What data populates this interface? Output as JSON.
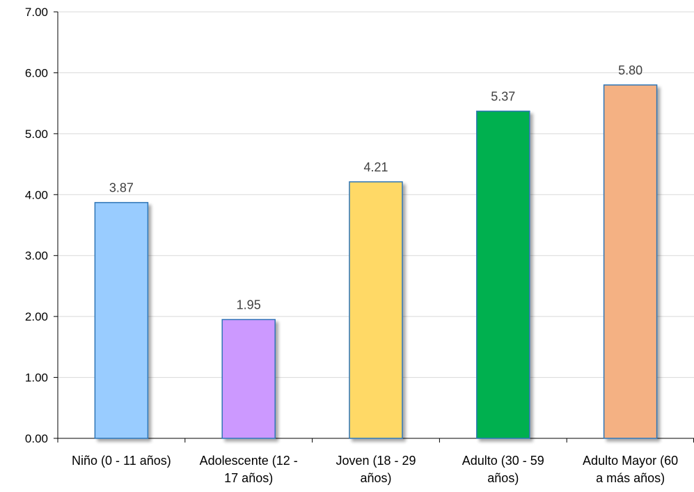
{
  "chart_data": {
    "type": "bar",
    "categories": [
      [
        "Niño (0 - 11 años)"
      ],
      [
        "Adolescente (12 -",
        "17 años)"
      ],
      [
        "Joven (18 - 29",
        "años)"
      ],
      [
        "Adulto (30 - 59",
        "años)"
      ],
      [
        "Adulto Mayor (60",
        "a más años)"
      ]
    ],
    "values": [
      3.87,
      1.95,
      4.21,
      5.37,
      5.8
    ],
    "value_labels": [
      "3.87",
      "1.95",
      "4.21",
      "5.37",
      "5.80"
    ],
    "colors": [
      "#99CCFF",
      "#CC99FF",
      "#FFD966",
      "#00B050",
      "#F4B183"
    ],
    "bar_border_color": "#2E75B6",
    "ylim": [
      0,
      7
    ],
    "yticks": [
      0,
      1,
      2,
      3,
      4,
      5,
      6,
      7
    ],
    "ytick_labels": [
      "0.00",
      "1.00",
      "2.00",
      "3.00",
      "4.00",
      "5.00",
      "6.00",
      "7.00"
    ],
    "grid": true,
    "grid_color": "#D9D9D9",
    "legend": "none"
  }
}
